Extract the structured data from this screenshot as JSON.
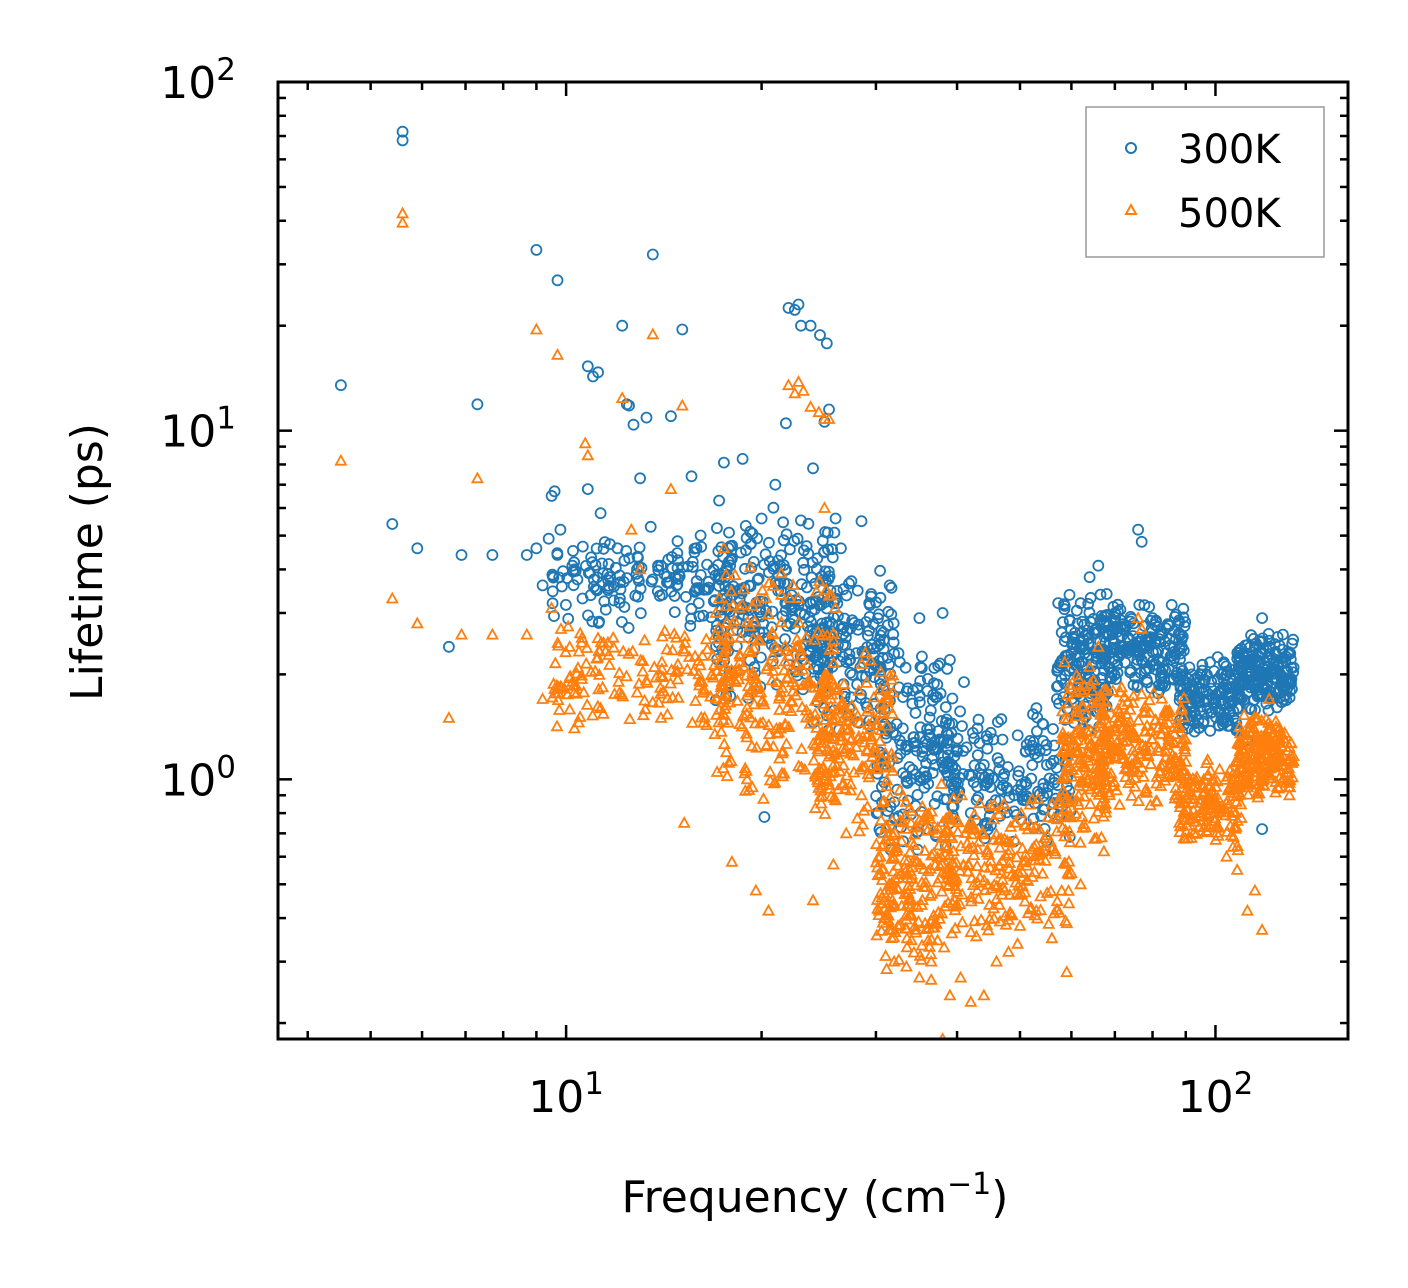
{
  "chart_data": {
    "type": "scatter",
    "title": "",
    "xlabel": "Frequency (cm",
    "xlabel_sup": "−1",
    "xlabel_end": ")",
    "ylabel": "Lifetime (ps)",
    "xscale": "log",
    "yscale": "log",
    "xlim": [
      3.6,
      160
    ],
    "ylim": [
      0.18,
      100
    ],
    "x_ticks": [
      {
        "value": 10,
        "base": "10",
        "exp": "1"
      },
      {
        "value": 100,
        "base": "10",
        "exp": "2"
      }
    ],
    "y_ticks": [
      {
        "value": 1,
        "base": "10",
        "exp": "0"
      },
      {
        "value": 10,
        "base": "10",
        "exp": "1"
      },
      {
        "value": 100,
        "base": "10",
        "exp": "2"
      }
    ],
    "legend_position": "top-right",
    "series": [
      {
        "name": "300K",
        "marker": "circle",
        "color": "#1f77b4",
        "points": [
          [
            4.5,
            13.5
          ],
          [
            5.4,
            5.4
          ],
          [
            5.6,
            72
          ],
          [
            5.6,
            68
          ],
          [
            5.9,
            4.6
          ],
          [
            6.6,
            2.4
          ],
          [
            6.9,
            4.4
          ],
          [
            7.3,
            11.9
          ],
          [
            7.7,
            4.4
          ],
          [
            8.7,
            4.4
          ],
          [
            9.0,
            4.6
          ],
          [
            9.0,
            33
          ],
          [
            9.2,
            3.6
          ],
          [
            9.4,
            4.9
          ],
          [
            9.5,
            6.5
          ],
          [
            9.6,
            6.7
          ],
          [
            9.7,
            27
          ],
          [
            9.8,
            5.2
          ],
          [
            10.3,
            4.0
          ],
          [
            10.6,
            3.3
          ],
          [
            10.8,
            15.3
          ],
          [
            10.8,
            6.8
          ],
          [
            11.0,
            14.3
          ],
          [
            11.2,
            14.7
          ],
          [
            11.3,
            5.8
          ],
          [
            11.4,
            3.9
          ],
          [
            12.0,
            4.6
          ],
          [
            12.2,
            20
          ],
          [
            12.4,
            11.9
          ],
          [
            12.5,
            11.8
          ],
          [
            12.7,
            10.4
          ],
          [
            13.0,
            7.3
          ],
          [
            13.3,
            10.9
          ],
          [
            13.5,
            5.3
          ],
          [
            13.6,
            32
          ],
          [
            14.0,
            4.1
          ],
          [
            14.5,
            11.0
          ],
          [
            14.8,
            3.6
          ],
          [
            15.1,
            19.5
          ],
          [
            15.6,
            7.4
          ],
          [
            16.0,
            3.2
          ],
          [
            16.5,
            3.5
          ],
          [
            17.2,
            6.3
          ],
          [
            17.5,
            8.1
          ],
          [
            18.0,
            4.3
          ],
          [
            18.5,
            2.8
          ],
          [
            18.7,
            8.3
          ],
          [
            19.0,
            3.1
          ],
          [
            19.5,
            2.1
          ],
          [
            20.0,
            5.6
          ],
          [
            20.2,
            0.78
          ],
          [
            21.0,
            7.0
          ],
          [
            21.8,
            10.5
          ],
          [
            22.0,
            22.5
          ],
          [
            22.5,
            22.2
          ],
          [
            22.8,
            23
          ],
          [
            23.0,
            20
          ],
          [
            23.8,
            20
          ],
          [
            24.0,
            7.8
          ],
          [
            24.6,
            18.8
          ],
          [
            25.2,
            17.8
          ],
          [
            25.4,
            11.5
          ],
          [
            25.0,
            10.6
          ],
          [
            26.0,
            5.6
          ],
          [
            26.5,
            4.6
          ],
          [
            27.5,
            3.7
          ],
          [
            28.5,
            5.5
          ],
          [
            29.5,
            3.4
          ],
          [
            30.5,
            2.1
          ],
          [
            31.5,
            3.6
          ],
          [
            32.5,
            2.3
          ],
          [
            33.0,
            1.4
          ],
          [
            34.0,
            1.0
          ],
          [
            35.0,
            2.9
          ],
          [
            36.0,
            0.72
          ],
          [
            37.0,
            1.1
          ],
          [
            38.0,
            3.0
          ],
          [
            39.0,
            2.2
          ],
          [
            40.0,
            1.2
          ],
          [
            41.0,
            1.9
          ],
          [
            42.0,
            0.8
          ],
          [
            43.0,
            1.4
          ],
          [
            44.0,
            1.1
          ],
          [
            45.0,
            0.95
          ],
          [
            47.0,
            1.3
          ],
          [
            49.0,
            0.9
          ],
          [
            51.0,
            1.2
          ],
          [
            53.0,
            1.6
          ],
          [
            55.0,
            1.1
          ],
          [
            57.0,
            1.7
          ],
          [
            60.0,
            2.3
          ],
          [
            62.0,
            3.2
          ],
          [
            64.0,
            3.8
          ],
          [
            66.0,
            4.1
          ],
          [
            68.0,
            3.4
          ],
          [
            70.0,
            3.0
          ],
          [
            72.0,
            2.7
          ],
          [
            74.0,
            2.4
          ],
          [
            76.0,
            5.2
          ],
          [
            77.0,
            4.8
          ],
          [
            78.0,
            2.5
          ],
          [
            80.0,
            2.9
          ],
          [
            84.0,
            2.3
          ],
          [
            88.0,
            2.4
          ],
          [
            92.0,
            2.0
          ],
          [
            96.0,
            1.8
          ],
          [
            100.0,
            1.7
          ],
          [
            104.0,
            1.6
          ],
          [
            108.0,
            1.4
          ],
          [
            112.0,
            1.3
          ],
          [
            115.0,
            2.4
          ],
          [
            118.0,
            2.9
          ],
          [
            121.0,
            2.5
          ],
          [
            124.0,
            2.2
          ],
          [
            127.0,
            2.6
          ],
          [
            130.0,
            1.9
          ],
          [
            118.0,
            0.72
          ]
        ],
        "bands": [
          {
            "x": [
              9.5,
              18
            ],
            "y": [
              2.6,
              5.4
            ],
            "n": 160
          },
          {
            "x": [
              17,
              26
            ],
            "y": [
              1.6,
              6.2
            ],
            "n": 240
          },
          {
            "x": [
              24,
              32
            ],
            "y": [
              1.3,
              4.2
            ],
            "n": 150
          },
          {
            "x": [
              30,
              40
            ],
            "y": [
              0.6,
              2.5
            ],
            "n": 170
          },
          {
            "x": [
              38,
              60
            ],
            "y": [
              0.6,
              1.6
            ],
            "n": 170
          },
          {
            "x": [
              57,
              68
            ],
            "y": [
              1.3,
              3.6
            ],
            "n": 150
          },
          {
            "x": [
              66,
              90
            ],
            "y": [
              1.7,
              3.3
            ],
            "n": 220
          },
          {
            "x": [
              88,
              110
            ],
            "y": [
              1.3,
              2.3
            ],
            "n": 160
          },
          {
            "x": [
              108,
              132
            ],
            "y": [
              1.5,
              2.7
            ],
            "n": 200
          }
        ]
      },
      {
        "name": "500K",
        "marker": "triangle",
        "color": "#ff7f0e",
        "points": [
          [
            4.5,
            8.2
          ],
          [
            5.4,
            3.3
          ],
          [
            5.6,
            42
          ],
          [
            5.6,
            39.5
          ],
          [
            5.9,
            2.8
          ],
          [
            6.6,
            1.5
          ],
          [
            6.9,
            2.6
          ],
          [
            7.3,
            7.3
          ],
          [
            7.7,
            2.6
          ],
          [
            8.7,
            2.6
          ],
          [
            9.0,
            19.5
          ],
          [
            9.2,
            1.7
          ],
          [
            9.5,
            3.1
          ],
          [
            9.7,
            16.5
          ],
          [
            10.3,
            1.4
          ],
          [
            10.7,
            9.2
          ],
          [
            10.8,
            8.5
          ],
          [
            11.3,
            1.6
          ],
          [
            12.2,
            12.4
          ],
          [
            12.6,
            5.2
          ],
          [
            13.0,
            4.0
          ],
          [
            13.6,
            18.9
          ],
          [
            14.0,
            1.5
          ],
          [
            14.5,
            6.8
          ],
          [
            15.1,
            11.8
          ],
          [
            15.2,
            0.75
          ],
          [
            16.0,
            2.0
          ],
          [
            17.2,
            3.3
          ],
          [
            17.5,
            4.6
          ],
          [
            18.0,
            0.58
          ],
          [
            19.0,
            1.0
          ],
          [
            19.6,
            0.48
          ],
          [
            20.5,
            0.42
          ],
          [
            22.0,
            13.5
          ],
          [
            22.5,
            12.8
          ],
          [
            22.8,
            13.8
          ],
          [
            23.2,
            13.0
          ],
          [
            23.8,
            11.7
          ],
          [
            24.5,
            11.3
          ],
          [
            25.0,
            10.8
          ],
          [
            25.4,
            10.8
          ],
          [
            25.0,
            6.0
          ],
          [
            24.0,
            0.45
          ],
          [
            25.8,
            0.57
          ],
          [
            27.0,
            0.7
          ],
          [
            28.5,
            0.9
          ],
          [
            29.5,
            1.3
          ],
          [
            31.0,
            0.4
          ],
          [
            32.0,
            0.3
          ],
          [
            33.5,
            0.35
          ],
          [
            35.0,
            0.27
          ],
          [
            36.5,
            0.3
          ],
          [
            38.0,
            0.18
          ],
          [
            39.0,
            0.24
          ],
          [
            40.5,
            0.27
          ],
          [
            42.0,
            0.23
          ],
          [
            44.0,
            0.24
          ],
          [
            46.0,
            0.3
          ],
          [
            48.0,
            0.32
          ],
          [
            50.0,
            0.38
          ],
          [
            53.0,
            0.42
          ],
          [
            56.0,
            0.35
          ],
          [
            59.0,
            0.28
          ],
          [
            62.0,
            0.5
          ],
          [
            64.0,
            2.1
          ],
          [
            66.0,
            2.4
          ],
          [
            68.0,
            1.8
          ],
          [
            70.0,
            1.5
          ],
          [
            72.0,
            1.4
          ],
          [
            76.0,
            2.9
          ],
          [
            77.0,
            2.7
          ],
          [
            80.0,
            1.3
          ],
          [
            84.0,
            1.2
          ],
          [
            88.0,
            0.75
          ],
          [
            92.0,
            0.9
          ],
          [
            96.0,
            1.0
          ],
          [
            100.0,
            0.8
          ],
          [
            104.0,
            0.6
          ],
          [
            108.0,
            0.55
          ],
          [
            112.0,
            0.42
          ],
          [
            115.0,
            0.48
          ],
          [
            118.0,
            0.37
          ],
          [
            121.0,
            1.7
          ],
          [
            124.0,
            1.3
          ],
          [
            127.0,
            1.1
          ],
          [
            130.0,
            0.9
          ]
        ],
        "bands": [
          {
            "x": [
              9.5,
              18
            ],
            "y": [
              1.3,
              3.0
            ],
            "n": 160
          },
          {
            "x": [
              17,
              26
            ],
            "y": [
              0.8,
              4.2
            ],
            "n": 260
          },
          {
            "x": [
              24,
              32
            ],
            "y": [
              0.7,
              2.4
            ],
            "n": 170
          },
          {
            "x": [
              30,
              40
            ],
            "y": [
              0.26,
              1.0
            ],
            "n": 230
          },
          {
            "x": [
              38,
              60
            ],
            "y": [
              0.33,
              0.95
            ],
            "n": 220
          },
          {
            "x": [
              58,
              68
            ],
            "y": [
              0.6,
              2.2
            ],
            "n": 170
          },
          {
            "x": [
              66,
              90
            ],
            "y": [
              0.8,
              1.9
            ],
            "n": 230
          },
          {
            "x": [
              88,
              110
            ],
            "y": [
              0.6,
              1.2
            ],
            "n": 160
          },
          {
            "x": [
              108,
              132
            ],
            "y": [
              0.85,
              1.6
            ],
            "n": 210
          }
        ]
      }
    ]
  }
}
